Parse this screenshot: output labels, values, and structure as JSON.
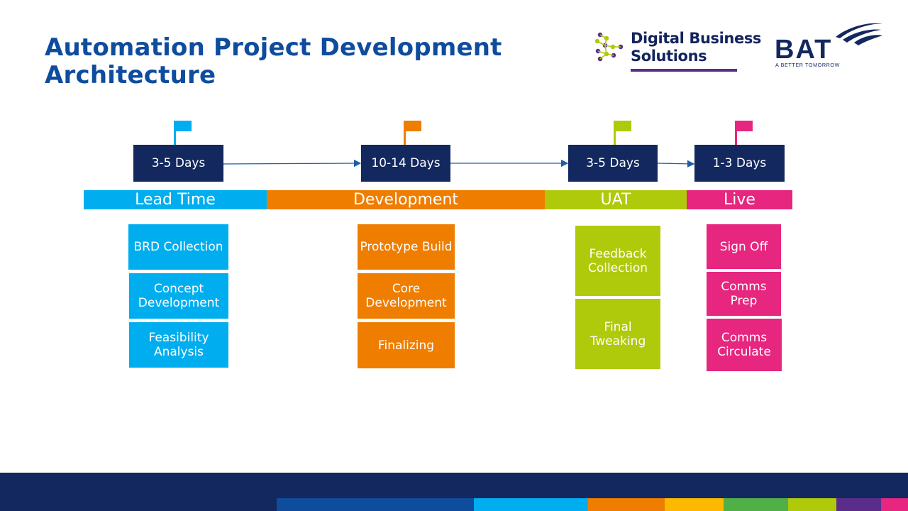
{
  "title": "Automation Project Development Architecture",
  "logos": {
    "dbs_line1": "Digital Business",
    "dbs_line2": "Solutions",
    "bat_name": "BAT",
    "bat_tagline": "A BETTER TOMORROW"
  },
  "colors": {
    "navy": "#13285E",
    "title_blue": "#0E4C9E",
    "lead": "#00AEEF",
    "dev": "#EF7D00",
    "uat": "#AFCA0B",
    "live": "#E6267F",
    "purple": "#5B2D8B"
  },
  "phases": [
    {
      "name": "Lead Time",
      "duration": "3-5 Days",
      "tasks": [
        "BRD Collection",
        "Concept Development",
        "Feasibility Analysis"
      ]
    },
    {
      "name": "Development",
      "duration": "10-14 Days",
      "tasks": [
        "Prototype Build",
        "Core Development",
        "Finalizing"
      ]
    },
    {
      "name": "UAT",
      "duration": "3-5 Days",
      "tasks": [
        "Feedback Collection",
        "Final Tweaking"
      ]
    },
    {
      "name": "Live",
      "duration": "1-3 Days",
      "tasks": [
        "Sign Off",
        "Comms Prep",
        "Comms Circulate"
      ]
    }
  ]
}
